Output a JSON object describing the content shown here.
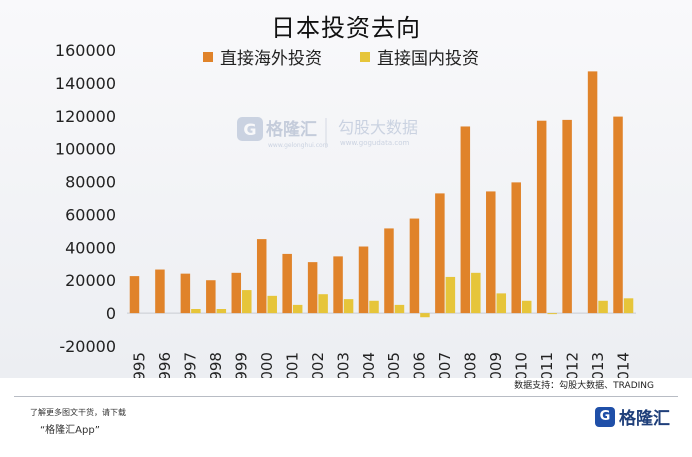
{
  "title": "日本投资去向",
  "source": "数据支持：勾股大数据、TRADING",
  "watermark": {
    "brand": "格隆汇",
    "brand_url": "www.gelonghui.com",
    "data_brand": "勾股大数据",
    "data_url": "www.gogudata.com"
  },
  "footer": {
    "note": "了解更多图文干货，请下载",
    "app": "“格隆汇App”",
    "brand": "格隆汇"
  },
  "colors": {
    "outward": "#e0832a",
    "domestic": "#e6c53a"
  },
  "chart_data": {
    "type": "bar",
    "title": "日本投资去向",
    "categories": [
      "1995",
      "1996",
      "1997",
      "1998",
      "1999",
      "2000",
      "2001",
      "2002",
      "2003",
      "2004",
      "2005",
      "2006",
      "2007",
      "2008",
      "2009",
      "2010",
      "2011",
      "2012",
      "2013",
      "2014"
    ],
    "series": [
      {
        "name": "直接海外投资",
        "values": [
          22500,
          26500,
          24000,
          20000,
          24500,
          45000,
          36000,
          31000,
          34500,
          40500,
          51500,
          57500,
          72800,
          113500,
          74000,
          79500,
          117000,
          117500,
          147000,
          119500
        ]
      },
      {
        "name": "直接国内投资",
        "values": [
          0,
          0,
          2500,
          2500,
          14000,
          10500,
          5000,
          11500,
          8500,
          7500,
          5000,
          -2500,
          22000,
          24500,
          12000,
          7500,
          -500,
          0,
          7500,
          9000
        ]
      }
    ],
    "ylim": [
      -20000,
      160000
    ],
    "yticks": [
      -20000,
      0,
      20000,
      40000,
      60000,
      80000,
      100000,
      120000,
      140000,
      160000
    ],
    "legend": "top",
    "grid": false
  }
}
